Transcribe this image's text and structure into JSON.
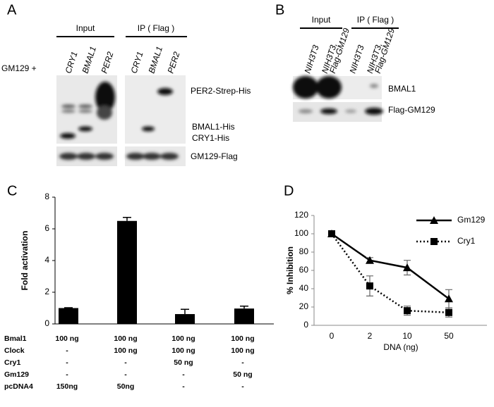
{
  "panel_a": {
    "label": "A",
    "groups": [
      "Input",
      "IP ( Flag )"
    ],
    "prefix": "GM129 +",
    "lanes": [
      "CRY1",
      "BMAL1",
      "PER2",
      "CRY1",
      "BMAL1",
      "PER2"
    ],
    "bands": [
      "PER2-Strep-His",
      "BMAL1-His",
      "CRY1-His",
      "GM129-Flag"
    ]
  },
  "panel_b": {
    "label": "B",
    "groups": [
      "Input",
      "IP ( Flag )"
    ],
    "lanes": [
      [
        "NIH3T3"
      ],
      [
        "NIH3T3,",
        "Flag-GM129"
      ],
      [
        "NIH3T3"
      ],
      [
        "NIH3T3,",
        "Flag-GM129"
      ]
    ],
    "bands": [
      "BMAL1",
      "Flag-GM129"
    ]
  },
  "chart_data": [
    {
      "type": "bar",
      "label": "C",
      "ylabel": "Fold activation",
      "categories": [
        null,
        null,
        null,
        null
      ],
      "values": [
        1.0,
        6.5,
        0.62,
        0.97
      ],
      "errors": [
        0.02,
        0.22,
        0.3,
        0.15
      ],
      "ylim": [
        0,
        8
      ],
      "yticks": [
        0,
        2,
        4,
        6,
        8
      ],
      "color": "#000000",
      "table": [
        {
          "name": "Bmal1",
          "cells": [
            "100 ng",
            "100 ng",
            "100 ng",
            "100 ng"
          ]
        },
        {
          "name": "Clock",
          "cells": [
            "-",
            "100 ng",
            "100 ng",
            "100 ng"
          ]
        },
        {
          "name": "Cry1",
          "cells": [
            "-",
            "-",
            "50 ng",
            "-"
          ]
        },
        {
          "name": "Gm129",
          "cells": [
            "-",
            "-",
            "-",
            "50 ng"
          ]
        },
        {
          "name": "pcDNA4",
          "cells": [
            "150ng",
            "50ng",
            "-",
            "-"
          ]
        }
      ]
    },
    {
      "type": "line",
      "label": "D",
      "ylabel": "% Inhibition",
      "xlabel": "DNA (ng)",
      "categories": [
        "0",
        "2",
        "10",
        "50"
      ],
      "ylim": [
        0,
        120
      ],
      "yticks": [
        0,
        20,
        40,
        60,
        80,
        100,
        120
      ],
      "legend": "upper right",
      "series": [
        {
          "name": "Gm129",
          "color": "#000000",
          "marker": "triangle",
          "dash": "solid",
          "values": [
            100,
            71,
            63,
            29
          ],
          "errors": [
            0,
            3,
            8,
            10
          ]
        },
        {
          "name": "Cry1",
          "color": "#000000",
          "marker": "square",
          "dash": "dotted",
          "values": [
            100,
            43,
            16,
            14
          ],
          "errors": [
            0,
            11,
            5,
            5
          ]
        }
      ]
    }
  ]
}
